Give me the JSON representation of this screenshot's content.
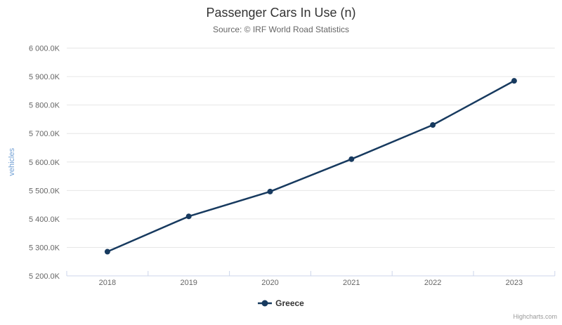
{
  "chart_data": {
    "type": "line",
    "title": "Passenger Cars In Use (n)",
    "subtitle": "Source: © IRF World Road Statistics",
    "categories": [
      "2018",
      "2019",
      "2020",
      "2021",
      "2022",
      "2023"
    ],
    "series": [
      {
        "name": "Greece",
        "color": "#173a5f",
        "values_k": [
          5285,
          5409,
          5496,
          5610,
          5730,
          5885
        ],
        "unit": "thousand vehicles (K)"
      }
    ],
    "xlabel": "",
    "ylabel": "vehicles",
    "ylim_k": [
      5200,
      6000
    ],
    "ytick_step_k": 100,
    "ytick_labels": [
      "5 200.0K",
      "5 300.0K",
      "5 400.0K",
      "5 500.0K",
      "5 600.0K",
      "5 700.0K",
      "5 800.0K",
      "5 900.0K",
      "6 000.0K"
    ],
    "grid": true,
    "legend_position": "bottom-center",
    "legend_items": [
      {
        "label": "Greece",
        "marker": "line-with-circle"
      }
    ],
    "credits": "Highcharts.com",
    "colors": {
      "title": "#333333",
      "subtitle": "#666666",
      "grid": "#e6e6e6",
      "axis_line": "#ccd6eb",
      "tick": "#ccd6eb",
      "axis_labels": "#666666",
      "y_axis_title": "#72a0d4",
      "legend_text": "#333333",
      "credits": "#999999"
    }
  }
}
